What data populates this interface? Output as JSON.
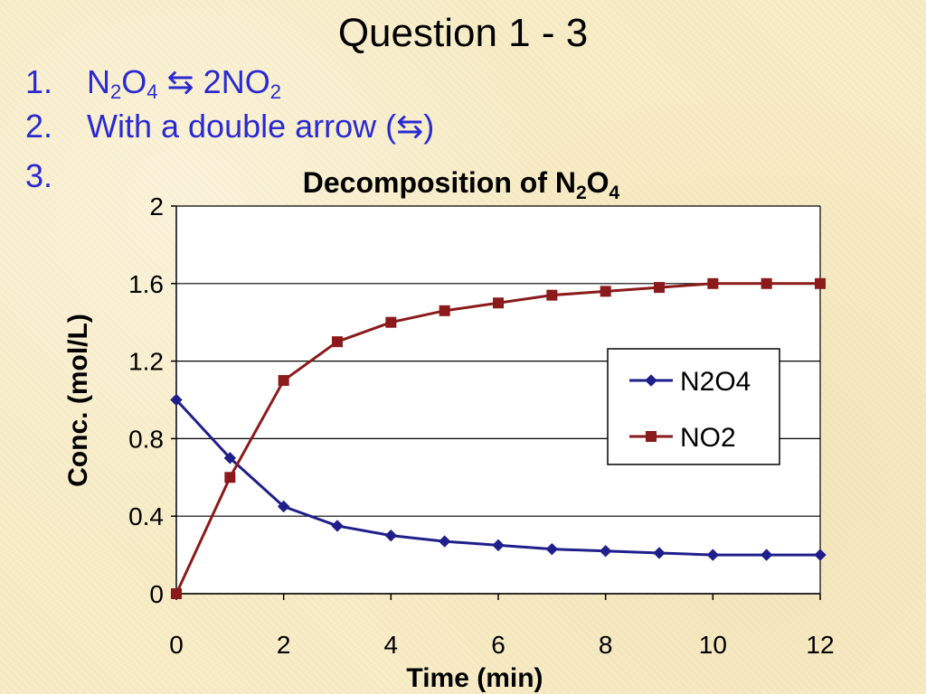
{
  "slide": {
    "title": "Question 1 - 3",
    "items": [
      {
        "number": "1.",
        "parts": [
          "N",
          "2",
          "O",
          "4",
          " ⇆ 2NO",
          "2"
        ]
      },
      {
        "number": "2.",
        "text": "With a double arrow (⇆)"
      },
      {
        "number": "3.",
        "text": ""
      }
    ]
  },
  "chart_data": {
    "type": "line",
    "title_parts": [
      "Decomposition of N",
      "2",
      "O",
      "4"
    ],
    "xlabel": "Time (min)",
    "ylabel": "Conc. (mol/L)",
    "xlim": [
      0,
      12
    ],
    "ylim": [
      0,
      2
    ],
    "xticks": [
      0,
      2,
      4,
      6,
      8,
      10,
      12
    ],
    "yticks": [
      0,
      0.4,
      0.8,
      1.2,
      1.6,
      2
    ],
    "grid": "horizontal",
    "legend_position": "right",
    "series": [
      {
        "name": "N2O4",
        "color": "#1f1f8c",
        "marker": "diamond",
        "x": [
          0,
          1,
          2,
          3,
          4,
          5,
          6,
          7,
          8,
          9,
          10,
          11,
          12
        ],
        "values": [
          1.0,
          0.7,
          0.45,
          0.35,
          0.3,
          0.27,
          0.25,
          0.23,
          0.22,
          0.21,
          0.2,
          0.2,
          0.2
        ]
      },
      {
        "name": "NO2",
        "color": "#8b1a1a",
        "marker": "square",
        "x": [
          0,
          1,
          2,
          3,
          4,
          5,
          6,
          7,
          8,
          9,
          10,
          11,
          12
        ],
        "values": [
          0.0,
          0.6,
          1.1,
          1.3,
          1.4,
          1.46,
          1.5,
          1.54,
          1.56,
          1.58,
          1.6,
          1.6,
          1.6
        ]
      }
    ]
  }
}
